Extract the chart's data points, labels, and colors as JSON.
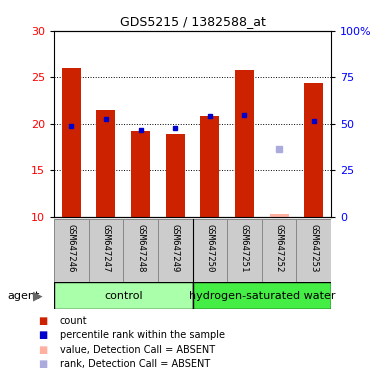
{
  "title": "GDS5215 / 1382588_at",
  "samples": [
    "GSM647246",
    "GSM647247",
    "GSM647248",
    "GSM647249",
    "GSM647250",
    "GSM647251",
    "GSM647252",
    "GSM647253"
  ],
  "count_values": [
    26.0,
    21.5,
    19.2,
    18.9,
    20.8,
    25.8,
    10.3,
    24.4
  ],
  "rank_values": [
    19.8,
    20.5,
    19.3,
    19.6,
    20.8,
    20.9,
    null,
    20.3
  ],
  "absent_rank_value": 17.3,
  "absent_rank_sample_idx": 6,
  "ylim": [
    10,
    30
  ],
  "yticks_left": [
    10,
    15,
    20,
    25,
    30
  ],
  "right_tick_labels": [
    "0",
    "25",
    "50",
    "75",
    "100%"
  ],
  "bar_color": "#cc2200",
  "rank_color": "#0000cc",
  "absent_bar_color": "#ffb0a0",
  "absent_rank_color": "#aaaadd",
  "group_control_color": "#aaffaa",
  "group_hw_color": "#44ee44",
  "label_box_color": "#cccccc",
  "legend_items": [
    {
      "label": "count",
      "color": "#cc2200"
    },
    {
      "label": "percentile rank within the sample",
      "color": "#0000cc"
    },
    {
      "label": "value, Detection Call = ABSENT",
      "color": "#ffb0a0"
    },
    {
      "label": "rank, Detection Call = ABSENT",
      "color": "#aaaadd"
    }
  ]
}
